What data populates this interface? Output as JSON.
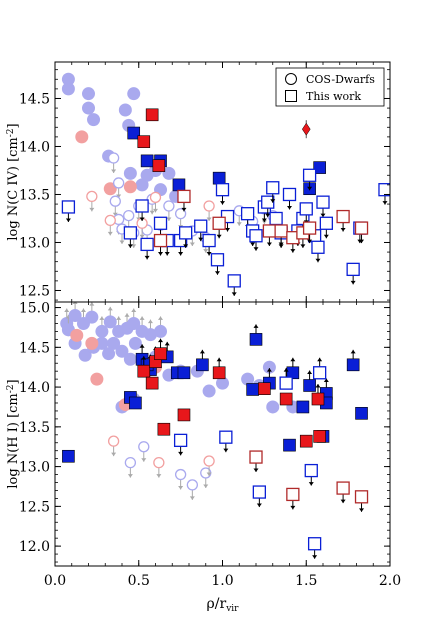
{
  "chart_data": [
    {
      "type": "scatter",
      "panel": "top",
      "ylabel": "log N(C IV) [cm$^{-2}$]",
      "xlim": [
        0.0,
        2.0
      ],
      "ylim": [
        12.38,
        14.88
      ],
      "yticks": [
        "12.5",
        "13.0",
        "13.5",
        "14.0",
        "14.5"
      ],
      "ytick_values": [
        12.5,
        13.0,
        13.5,
        14.0,
        14.5
      ],
      "legend": {
        "placement": "top-right",
        "entries": [
          {
            "marker": "circle",
            "label": "COS-Dwarfs"
          },
          {
            "marker": "square",
            "label": "This work"
          }
        ]
      },
      "series": [
        {
          "marker": "circle",
          "color": "#a9a9ee",
          "filled": true,
          "limit": "detection",
          "points": [
            [
              0.08,
              14.7
            ],
            [
              0.08,
              14.6
            ],
            [
              0.2,
              14.55
            ],
            [
              0.2,
              14.4
            ],
            [
              0.23,
              14.28
            ],
            [
              0.32,
              13.9
            ],
            [
              0.42,
              14.38
            ],
            [
              0.44,
              14.22
            ],
            [
              0.47,
              14.55
            ],
            [
              0.45,
              13.72
            ],
            [
              0.52,
              13.6
            ],
            [
              0.55,
              13.7
            ],
            [
              0.6,
              13.75
            ],
            [
              0.68,
              13.72
            ],
            [
              0.63,
              13.55
            ],
            [
              0.72,
              13.48
            ]
          ]
        },
        {
          "marker": "circle",
          "color": "#f2a0a0",
          "filled": true,
          "limit": "detection",
          "points": [
            [
              0.16,
              14.1
            ],
            [
              0.33,
              13.56
            ],
            [
              0.45,
              13.58
            ]
          ]
        },
        {
          "marker": "circle",
          "color": "#a9a9ee",
          "filled": false,
          "limit": "upper",
          "points": [
            [
              0.35,
              13.88
            ],
            [
              0.38,
              13.62
            ],
            [
              0.36,
              13.43
            ],
            [
              0.38,
              13.24
            ],
            [
              0.4,
              13.14
            ],
            [
              0.44,
              13.28
            ],
            [
              0.47,
              13.1
            ],
            [
              0.5,
              13.38
            ],
            [
              0.55,
              13.13
            ],
            [
              0.58,
              13.45
            ],
            [
              0.63,
              13.18
            ],
            [
              0.68,
              13.38
            ],
            [
              0.75,
              13.3
            ],
            [
              0.82,
              13.12
            ],
            [
              0.9,
              13.05
            ],
            [
              1.1,
              13.33
            ],
            [
              1.18,
              13.22
            ],
            [
              1.25,
              13.35
            ],
            [
              1.3,
              13.28
            ]
          ]
        },
        {
          "marker": "circle",
          "color": "#f2a0a0",
          "filled": false,
          "limit": "upper",
          "points": [
            [
              0.22,
              13.48
            ],
            [
              0.33,
              13.23
            ],
            [
              0.52,
              13.2
            ],
            [
              0.6,
              13.47
            ],
            [
              0.92,
              13.38
            ]
          ]
        },
        {
          "marker": "square",
          "color": "#0a1fd6",
          "filled": true,
          "limit": "detection",
          "points": [
            [
              0.47,
              14.14
            ],
            [
              0.55,
              13.85
            ],
            [
              0.63,
              13.85
            ],
            [
              0.74,
              13.6
            ],
            [
              0.98,
              13.67
            ],
            [
              1.58,
              13.78
            ],
            [
              1.52,
              13.56
            ]
          ]
        },
        {
          "marker": "square",
          "color": "#e8171b",
          "filled": true,
          "limit": "detection",
          "points": [
            [
              0.58,
              14.33
            ],
            [
              0.53,
              14.05
            ],
            [
              0.62,
              13.8
            ]
          ]
        },
        {
          "marker": "diamond",
          "color": "#e8171b",
          "filled": true,
          "limit": "detection",
          "points": [
            [
              1.5,
              14.18
            ]
          ]
        },
        {
          "marker": "square",
          "color": "#0a1fd6",
          "filled": false,
          "limit": "upper",
          "points": [
            [
              0.08,
              13.37
            ],
            [
              0.45,
              13.1
            ],
            [
              0.52,
              13.38
            ],
            [
              0.55,
              12.98
            ],
            [
              0.63,
              13.2
            ],
            [
              0.67,
              13.02
            ],
            [
              0.75,
              13.02
            ],
            [
              0.78,
              13.1
            ],
            [
              0.87,
              13.17
            ],
            [
              0.92,
              13.02
            ],
            [
              0.97,
              12.82
            ],
            [
              1.0,
              13.55
            ],
            [
              1.03,
              13.27
            ],
            [
              1.07,
              12.6
            ],
            [
              1.15,
              13.3
            ],
            [
              1.18,
              13.12
            ],
            [
              1.2,
              13.07
            ],
            [
              1.25,
              13.37
            ],
            [
              1.27,
              13.42
            ],
            [
              1.3,
              13.57
            ],
            [
              1.32,
              13.25
            ],
            [
              1.35,
              13.1
            ],
            [
              1.4,
              13.5
            ],
            [
              1.45,
              13.12
            ],
            [
              1.48,
              13.25
            ],
            [
              1.5,
              13.35
            ],
            [
              1.52,
              13.7
            ],
            [
              1.55,
              13.07
            ],
            [
              1.57,
              12.95
            ],
            [
              1.6,
              13.42
            ],
            [
              1.62,
              13.2
            ],
            [
              1.78,
              12.72
            ],
            [
              1.82,
              13.15
            ],
            [
              1.97,
              13.55
            ]
          ]
        },
        {
          "marker": "square",
          "color": "#b02a2a",
          "filled": false,
          "limit": "upper",
          "points": [
            [
              0.63,
              13.02
            ],
            [
              0.77,
              13.48
            ],
            [
              0.98,
              13.2
            ],
            [
              1.28,
              13.12
            ],
            [
              1.35,
              13.12
            ],
            [
              1.42,
              13.05
            ],
            [
              1.48,
              13.1
            ],
            [
              1.52,
              13.15
            ],
            [
              1.72,
              13.27
            ],
            [
              1.83,
              13.15
            ]
          ]
        }
      ]
    },
    {
      "type": "scatter",
      "panel": "bottom",
      "xlabel": "$\\rho$/r$_{\\rm vir}$",
      "ylabel": "log N(H I) [cm$^{-2}$]",
      "xlim": [
        0.0,
        2.0
      ],
      "ylim": [
        11.75,
        15.07
      ],
      "xticks": [
        "0.0",
        "0.5",
        "1.0",
        "1.5",
        "2.0"
      ],
      "xtick_values": [
        0.0,
        0.5,
        1.0,
        1.5,
        2.0
      ],
      "yticks": [
        "12.0",
        "12.5",
        "13.0",
        "13.5",
        "14.0",
        "14.5",
        "15.0"
      ],
      "ytick_values": [
        12.0,
        12.5,
        13.0,
        13.5,
        14.0,
        14.5,
        15.0
      ],
      "series": [
        {
          "marker": "circle",
          "color": "#a9a9ee",
          "filled": true,
          "limit": "lower",
          "points": [
            [
              0.07,
              14.8
            ],
            [
              0.08,
              14.72
            ],
            [
              0.12,
              14.9
            ],
            [
              0.17,
              14.8
            ],
            [
              0.22,
              14.88
            ],
            [
              0.28,
              14.7
            ],
            [
              0.33,
              14.82
            ],
            [
              0.38,
              14.7
            ],
            [
              0.43,
              14.74
            ],
            [
              0.47,
              14.8
            ],
            [
              0.52,
              14.7
            ],
            [
              0.57,
              14.66
            ],
            [
              0.63,
              14.7
            ]
          ]
        },
        {
          "marker": "circle",
          "color": "#a9a9ee",
          "filled": true,
          "limit": "detection",
          "points": [
            [
              0.12,
              14.55
            ],
            [
              0.18,
              14.4
            ],
            [
              0.23,
              14.5
            ],
            [
              0.28,
              14.55
            ],
            [
              0.32,
              14.42
            ],
            [
              0.35,
              14.55
            ],
            [
              0.4,
              14.45
            ],
            [
              0.45,
              14.35
            ],
            [
              0.48,
              14.55
            ],
            [
              0.55,
              14.3
            ],
            [
              0.6,
              14.38
            ],
            [
              0.68,
              14.15
            ],
            [
              0.75,
              14.2
            ],
            [
              0.85,
              14.2
            ],
            [
              0.92,
              13.95
            ],
            [
              1.0,
              14.05
            ],
            [
              1.15,
              14.1
            ],
            [
              1.22,
              14.02
            ],
            [
              1.28,
              14.25
            ],
            [
              1.42,
              13.75
            ],
            [
              1.3,
              13.75
            ],
            [
              0.4,
              13.75
            ],
            [
              0.47,
              13.85
            ]
          ]
        },
        {
          "marker": "circle",
          "color": "#f2a0a0",
          "filled": true,
          "limit": "detection",
          "points": [
            [
              0.13,
              14.65
            ],
            [
              0.22,
              14.55
            ],
            [
              0.25,
              14.1
            ],
            [
              0.42,
              13.78
            ],
            [
              0.55,
              14.2
            ],
            [
              0.6,
              14.25
            ]
          ]
        },
        {
          "marker": "circle",
          "color": "#a9a9ee",
          "filled": false,
          "limit": "upper",
          "points": [
            [
              0.45,
              13.05
            ],
            [
              0.53,
              13.25
            ],
            [
              0.75,
              12.9
            ],
            [
              0.82,
              12.77
            ],
            [
              0.9,
              12.92
            ]
          ]
        },
        {
          "marker": "circle",
          "color": "#f2a0a0",
          "filled": false,
          "limit": "upper",
          "points": [
            [
              0.35,
              13.32
            ],
            [
              0.62,
              13.05
            ],
            [
              0.92,
              13.07
            ]
          ]
        },
        {
          "marker": "square",
          "color": "#0a1fd6",
          "filled": true,
          "limit": "lower",
          "points": [
            [
              0.52,
              14.35
            ],
            [
              0.57,
              14.22
            ],
            [
              0.67,
              14.38
            ],
            [
              0.88,
              14.28
            ],
            [
              1.2,
              14.6
            ],
            [
              1.28,
              14.05
            ],
            [
              1.42,
              14.18
            ],
            [
              1.52,
              14.02
            ],
            [
              1.62,
              13.92
            ],
            [
              1.78,
              14.28
            ]
          ]
        },
        {
          "marker": "square",
          "color": "#0a1fd6",
          "filled": true,
          "limit": "detection",
          "points": [
            [
              0.08,
              13.13
            ],
            [
              0.45,
              13.87
            ],
            [
              0.48,
              13.8
            ],
            [
              0.55,
              14.28
            ],
            [
              0.73,
              14.18
            ],
            [
              0.77,
              14.18
            ],
            [
              1.18,
              13.97
            ],
            [
              1.4,
              13.27
            ],
            [
              1.48,
              13.75
            ],
            [
              1.6,
              13.38
            ],
            [
              1.62,
              13.8
            ],
            [
              1.83,
              13.67
            ]
          ]
        },
        {
          "marker": "square",
          "color": "#e8171b",
          "filled": true,
          "limit": "lower",
          "points": [
            [
              0.53,
              14.2
            ],
            [
              0.6,
              14.32
            ],
            [
              0.63,
              14.42
            ],
            [
              0.98,
              14.18
            ],
            [
              1.57,
              13.85
            ]
          ]
        },
        {
          "marker": "square",
          "color": "#e8171b",
          "filled": true,
          "limit": "detection",
          "points": [
            [
              0.58,
              14.05
            ],
            [
              0.65,
              13.47
            ],
            [
              0.77,
              13.65
            ],
            [
              1.25,
              13.98
            ],
            [
              1.38,
              13.85
            ],
            [
              1.5,
              13.32
            ],
            [
              1.58,
              13.38
            ]
          ]
        },
        {
          "marker": "square",
          "color": "#0a1fd6",
          "filled": false,
          "limit": "lower",
          "points": [
            [
              1.38,
              14.05
            ],
            [
              1.58,
              14.18
            ]
          ]
        },
        {
          "marker": "square",
          "color": "#0a1fd6",
          "filled": false,
          "limit": "upper",
          "points": [
            [
              0.75,
              13.33
            ],
            [
              1.02,
              13.37
            ],
            [
              1.22,
              12.68
            ],
            [
              1.53,
              12.95
            ],
            [
              1.55,
              12.03
            ]
          ]
        },
        {
          "marker": "square",
          "color": "#b02a2a",
          "filled": false,
          "limit": "upper",
          "points": [
            [
              1.2,
              13.12
            ],
            [
              1.42,
              12.65
            ],
            [
              1.72,
              12.73
            ],
            [
              1.83,
              12.62
            ]
          ]
        }
      ]
    }
  ]
}
